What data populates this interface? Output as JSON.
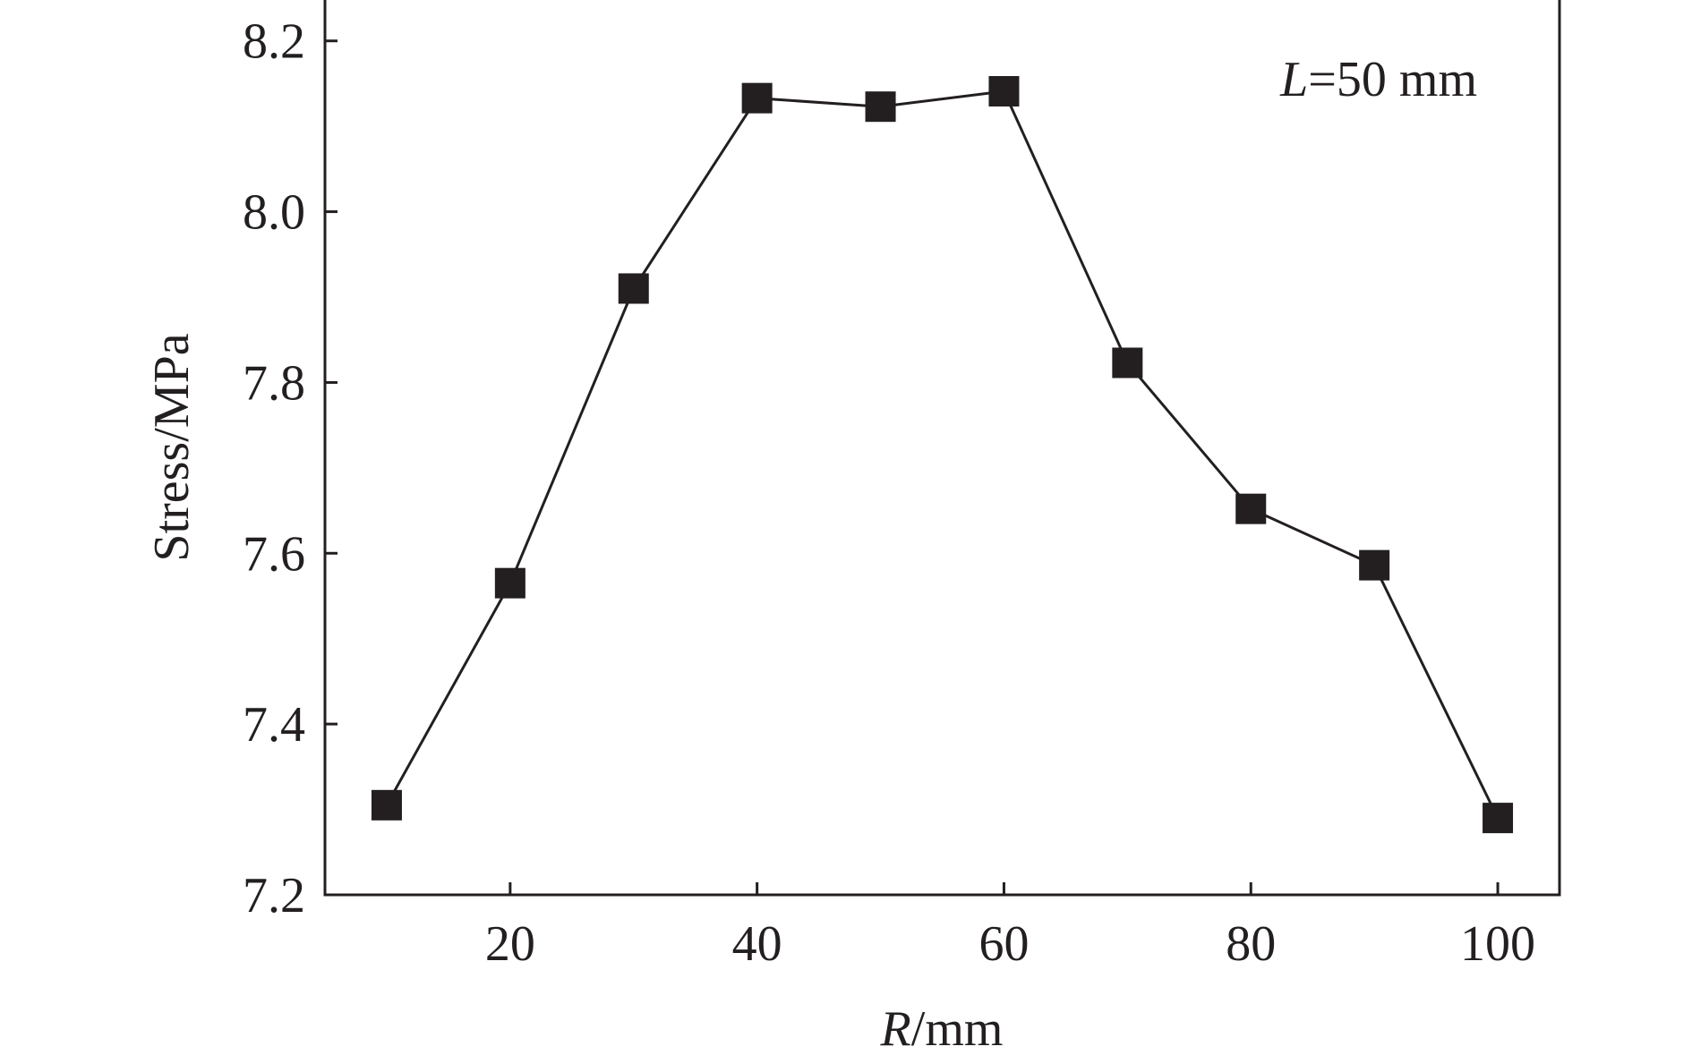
{
  "chart_data": {
    "type": "line",
    "title": "",
    "xlabel": {
      "var": "R",
      "unit": "/mm"
    },
    "ylabel": "Stress/MPa",
    "annotation": {
      "var": "L",
      "rest": "=50 mm"
    },
    "xlim": [
      5,
      105
    ],
    "ylim": [
      7.2,
      8.25
    ],
    "xticks": [
      20,
      40,
      60,
      80,
      100
    ],
    "xtick_labels": [
      "20",
      "40",
      "60",
      "80",
      "100"
    ],
    "yticks": [
      7.2,
      7.4,
      7.6,
      7.8,
      8.0,
      8.2
    ],
    "ytick_labels": [
      "7.2",
      "7.4",
      "7.6",
      "7.8",
      "8.0",
      "8.2"
    ],
    "grid": false,
    "series": [
      {
        "x": [
          10,
          20,
          30,
          40,
          50,
          60,
          70,
          80,
          90,
          100
        ],
        "values": [
          7.305,
          7.565,
          7.91,
          8.133,
          8.123,
          8.141,
          7.823,
          7.652,
          7.586,
          7.29
        ],
        "marker": "square",
        "color": "#231f20"
      }
    ]
  }
}
